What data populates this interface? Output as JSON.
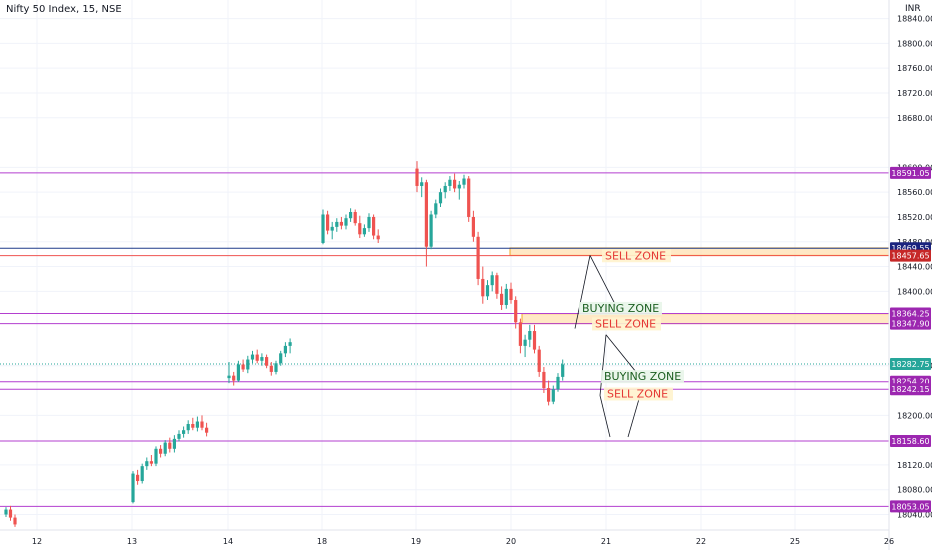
{
  "header": {
    "symbol_title": "Nifty 50 Index, 15, NSE",
    "currency": "INR"
  },
  "colors": {
    "up": "#26a69a",
    "down": "#ef5350",
    "level_line": "#b33fcf",
    "level_badge": "#9c27b0",
    "blue_line": "#1e3a8a",
    "blue_badge": "#1a237e",
    "red_badge": "#c62828",
    "teal_badge": "#26a69a",
    "zone_fill": "#ffe0b2",
    "zone_border": "#f5a623",
    "sell_text": "#e53935",
    "buy_text": "#1b5e20",
    "buy_bg": "#e8f5e9",
    "sell_bg": "#fff3cd"
  },
  "chart_data": {
    "type": "candlestick",
    "y_axis": {
      "range": [
        18015,
        18870
      ],
      "tick_labels": [
        "18040.00",
        "18080.00",
        "18120.00",
        "18200.00",
        "18280.00",
        "18400.00",
        "18440.00",
        "18480.00",
        "18520.00",
        "18560.00",
        "18600.00",
        "18680.00",
        "18720.00",
        "18760.00",
        "18800.00",
        "18840.00"
      ],
      "ticks": [
        18040,
        18080,
        18120,
        18200,
        18280,
        18400,
        18440,
        18480,
        18520,
        18560,
        18600,
        18680,
        18720,
        18760,
        18800,
        18840
      ]
    },
    "x_axis": {
      "tick_labels": [
        "12",
        "13",
        "14",
        "18",
        "19",
        "20",
        "21",
        "22",
        "25",
        "26"
      ]
    },
    "price_levels": [
      {
        "value": 18591.05,
        "label": "18591.05",
        "kind": "level"
      },
      {
        "value": 18469.55,
        "label": "18469.55",
        "kind": "blue"
      },
      {
        "value": 18457.65,
        "label": "18457.65",
        "kind": "red"
      },
      {
        "value": 18364.25,
        "label": "18364.25",
        "kind": "level"
      },
      {
        "value": 18347.9,
        "label": "18347.90",
        "kind": "level"
      },
      {
        "value": 18282.75,
        "label": "18282.75",
        "kind": "teal"
      },
      {
        "value": 18254.2,
        "label": "18254.20",
        "kind": "level"
      },
      {
        "value": 18242.15,
        "label": "18242.15",
        "kind": "level"
      },
      {
        "value": 18158.6,
        "label": "18158.60",
        "kind": "level"
      },
      {
        "value": 18053.05,
        "label": "18053.05",
        "kind": "level"
      }
    ],
    "zones": [
      {
        "from": 18458,
        "to": 18470,
        "label": "SELL ZONE"
      },
      {
        "from": 18348,
        "to": 18364,
        "label": "SELL ZONE"
      }
    ],
    "annotations": [
      {
        "text": "SELL ZONE",
        "style": "sell",
        "price": 18455
      },
      {
        "text": "BUYING ZONE",
        "style": "buy",
        "price": 18370
      },
      {
        "text": "SELL ZONE",
        "style": "sell",
        "price": 18345
      },
      {
        "text": "BUYING ZONE",
        "style": "buy",
        "price": 18260
      },
      {
        "text": "SELL ZONE",
        "style": "sell",
        "price": 18232
      }
    ],
    "candles": [
      [
        18040,
        18052,
        18036,
        18048
      ],
      [
        18048,
        18054,
        18030,
        18035
      ],
      [
        18035,
        18040,
        18020,
        18024
      ],
      [
        18060,
        18110,
        18058,
        18106
      ],
      [
        18104,
        18112,
        18088,
        18094
      ],
      [
        18094,
        18122,
        18090,
        18118
      ],
      [
        18118,
        18132,
        18112,
        18126
      ],
      [
        18126,
        18136,
        18118,
        18122
      ],
      [
        18122,
        18150,
        18118,
        18146
      ],
      [
        18146,
        18152,
        18132,
        18138
      ],
      [
        18138,
        18160,
        18134,
        18156
      ],
      [
        18156,
        18164,
        18140,
        18146
      ],
      [
        18146,
        18168,
        18140,
        18162
      ],
      [
        18162,
        18176,
        18158,
        18170
      ],
      [
        18170,
        18182,
        18164,
        18176
      ],
      [
        18176,
        18192,
        18170,
        18186
      ],
      [
        18186,
        18196,
        18176,
        18180
      ],
      [
        18180,
        18198,
        18174,
        18190
      ],
      [
        18190,
        18200,
        18176,
        18180
      ],
      [
        18180,
        18188,
        18166,
        18172
      ],
      [
        18260,
        18286,
        18252,
        18264
      ],
      [
        18264,
        18270,
        18248,
        18256
      ],
      [
        18256,
        18288,
        18254,
        18282
      ],
      [
        18282,
        18290,
        18270,
        18274
      ],
      [
        18274,
        18296,
        18268,
        18290
      ],
      [
        18290,
        18304,
        18284,
        18298
      ],
      [
        18298,
        18306,
        18284,
        18288
      ],
      [
        18288,
        18300,
        18280,
        18294
      ],
      [
        18294,
        18298,
        18276,
        18280
      ],
      [
        18280,
        18286,
        18264,
        18270
      ],
      [
        18270,
        18288,
        18266,
        18284
      ],
      [
        18284,
        18304,
        18280,
        18300
      ],
      [
        18300,
        18318,
        18294,
        18312
      ],
      [
        18312,
        18324,
        18300,
        18318
      ],
      [
        18478,
        18532,
        18476,
        18524
      ],
      [
        18524,
        18530,
        18492,
        18498
      ],
      [
        18498,
        18512,
        18484,
        18504
      ],
      [
        18504,
        18518,
        18496,
        18512
      ],
      [
        18512,
        18520,
        18500,
        18506
      ],
      [
        18506,
        18524,
        18500,
        18518
      ],
      [
        18518,
        18534,
        18512,
        18528
      ],
      [
        18528,
        18532,
        18506,
        18510
      ],
      [
        18510,
        18522,
        18486,
        18492
      ],
      [
        18492,
        18508,
        18488,
        18502
      ],
      [
        18502,
        18526,
        18496,
        18520
      ],
      [
        18520,
        18524,
        18484,
        18490
      ],
      [
        18490,
        18500,
        18478,
        18484
      ],
      [
        18598,
        18610,
        18560,
        18570
      ],
      [
        18570,
        18584,
        18552,
        18576
      ],
      [
        18576,
        18580,
        18440,
        18472
      ],
      [
        18472,
        18530,
        18468,
        18524
      ],
      [
        18524,
        18548,
        18518,
        18542
      ],
      [
        18542,
        18566,
        18536,
        18560
      ],
      [
        18560,
        18576,
        18550,
        18570
      ],
      [
        18570,
        18586,
        18562,
        18580
      ],
      [
        18580,
        18590,
        18560,
        18566
      ],
      [
        18566,
        18578,
        18548,
        18572
      ],
      [
        18572,
        18588,
        18566,
        18582
      ],
      [
        18582,
        18586,
        18512,
        18520
      ],
      [
        18520,
        18530,
        18480,
        18488
      ],
      [
        18488,
        18496,
        18410,
        18420
      ],
      [
        18420,
        18440,
        18380,
        18392
      ],
      [
        18392,
        18418,
        18386,
        18410
      ],
      [
        18410,
        18432,
        18400,
        18426
      ],
      [
        18426,
        18430,
        18388,
        18396
      ],
      [
        18396,
        18408,
        18370,
        18378
      ],
      [
        18378,
        18412,
        18372,
        18404
      ],
      [
        18404,
        18414,
        18380,
        18386
      ],
      [
        18386,
        18392,
        18340,
        18350
      ],
      [
        18350,
        18356,
        18300,
        18312
      ],
      [
        18312,
        18330,
        18294,
        18322
      ],
      [
        18322,
        18346,
        18310,
        18336
      ],
      [
        18336,
        18346,
        18300,
        18306
      ],
      [
        18306,
        18312,
        18262,
        18270
      ],
      [
        18270,
        18278,
        18236,
        18244
      ],
      [
        18244,
        18256,
        18216,
        18222
      ],
      [
        18222,
        18248,
        18218,
        18242
      ],
      [
        18242,
        18268,
        18238,
        18262
      ],
      [
        18262,
        18290,
        18256,
        18282
      ]
    ],
    "candle_x_positions_note": "computed in script"
  }
}
